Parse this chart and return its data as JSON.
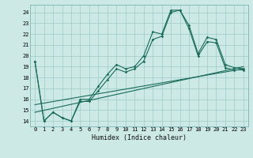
{
  "xlabel": "Humidex (Indice chaleur)",
  "bg_color": "#cce9e5",
  "grid_color": "#9dccc7",
  "line_color": "#1a6b5a",
  "xlim": [
    -0.5,
    23.5
  ],
  "ylim": [
    13.5,
    24.7
  ],
  "xticks": [
    0,
    1,
    2,
    3,
    4,
    5,
    6,
    7,
    8,
    9,
    10,
    11,
    12,
    13,
    14,
    15,
    16,
    17,
    18,
    19,
    20,
    21,
    22,
    23
  ],
  "yticks": [
    14,
    15,
    16,
    17,
    18,
    19,
    20,
    21,
    22,
    23,
    24
  ],
  "line1_x": [
    0,
    1,
    2,
    3,
    4,
    5,
    6,
    7,
    8,
    9,
    10,
    11,
    12,
    13,
    14,
    15,
    16,
    17,
    18,
    19,
    20,
    21,
    22,
    23
  ],
  "line1_y": [
    19.5,
    14.0,
    14.8,
    14.3,
    14.0,
    16.0,
    16.0,
    17.2,
    18.3,
    19.2,
    18.8,
    19.0,
    20.0,
    22.2,
    22.0,
    24.2,
    24.2,
    22.8,
    20.2,
    21.7,
    21.5,
    19.2,
    18.9,
    18.8
  ],
  "line2_x": [
    0,
    1,
    2,
    3,
    4,
    5,
    6,
    7,
    8,
    9,
    10,
    11,
    12,
    13,
    14,
    15,
    16,
    17,
    18,
    19,
    20,
    21,
    22,
    23
  ],
  "line2_y": [
    19.5,
    14.0,
    14.8,
    14.3,
    14.0,
    15.8,
    15.8,
    16.8,
    17.8,
    18.8,
    18.5,
    18.8,
    19.5,
    21.5,
    21.8,
    24.0,
    24.2,
    22.5,
    20.0,
    21.3,
    21.2,
    18.9,
    18.7,
    18.7
  ],
  "line3_x": [
    0,
    23
  ],
  "line3_y": [
    14.8,
    19.0
  ],
  "line4_x": [
    0,
    23
  ],
  "line4_y": [
    15.5,
    18.8
  ],
  "xlabel_fontsize": 6.0,
  "tick_fontsize": 5.0,
  "marker_size": 1.8,
  "line_width": 0.8
}
